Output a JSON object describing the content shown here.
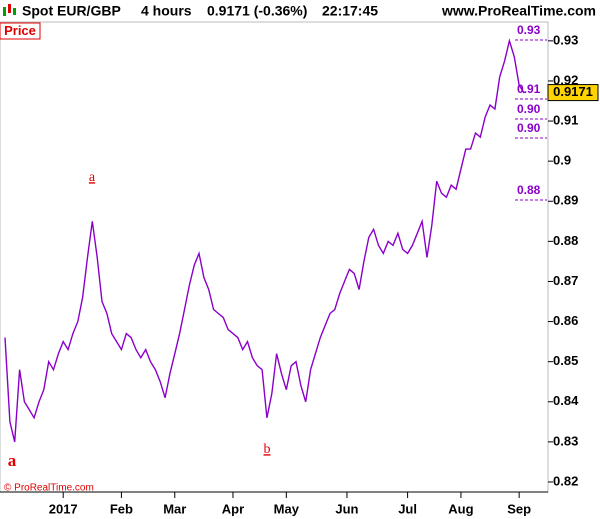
{
  "header": {
    "symbol": "Spot EUR/GBP",
    "timeframe": "4 hours",
    "quote": "0.9171 (-0.36%)",
    "time": "22:17:45",
    "site": "www.ProRealTime.com"
  },
  "panel_label": "Price",
  "copyright": "© ProRealTime.com",
  "chart_data": {
    "type": "line",
    "series": [
      {
        "name": "Spot EUR/GBP",
        "color": "#8a00c8",
        "values": [
          0.856,
          0.835,
          0.83,
          0.848,
          0.84,
          0.838,
          0.836,
          0.84,
          0.843,
          0.85,
          0.848,
          0.852,
          0.855,
          0.853,
          0.857,
          0.86,
          0.866,
          0.876,
          0.885,
          0.876,
          0.865,
          0.862,
          0.857,
          0.855,
          0.853,
          0.857,
          0.856,
          0.853,
          0.851,
          0.853,
          0.85,
          0.848,
          0.845,
          0.841,
          0.847,
          0.852,
          0.857,
          0.863,
          0.869,
          0.874,
          0.877,
          0.871,
          0.868,
          0.863,
          0.862,
          0.861,
          0.858,
          0.857,
          0.856,
          0.853,
          0.855,
          0.851,
          0.849,
          0.848,
          0.836,
          0.842,
          0.852,
          0.847,
          0.843,
          0.849,
          0.85,
          0.844,
          0.84,
          0.848,
          0.852,
          0.856,
          0.859,
          0.862,
          0.863,
          0.867,
          0.87,
          0.873,
          0.872,
          0.868,
          0.875,
          0.881,
          0.883,
          0.879,
          0.877,
          0.88,
          0.879,
          0.882,
          0.878,
          0.877,
          0.879,
          0.882,
          0.885,
          0.876,
          0.884,
          0.895,
          0.892,
          0.891,
          0.894,
          0.893,
          0.898,
          0.903,
          0.903,
          0.907,
          0.906,
          0.911,
          0.914,
          0.913,
          0.921,
          0.925,
          0.93,
          0.926,
          0.919,
          0.917
        ]
      }
    ],
    "xlim": [
      0,
      107
    ],
    "xticks": [
      {
        "value": 12,
        "label": "2017"
      },
      {
        "value": 24,
        "label": "Feb"
      },
      {
        "value": 35,
        "label": "Mar"
      },
      {
        "value": 47,
        "label": "Apr"
      },
      {
        "value": 58,
        "label": "May"
      },
      {
        "value": 70.5,
        "label": "Jun"
      },
      {
        "value": 83,
        "label": "Jul"
      },
      {
        "value": 94,
        "label": "Aug"
      },
      {
        "value": 106,
        "label": "Sep"
      }
    ],
    "ylim": [
      0.818,
      0.9347
    ],
    "yticks": [
      0.82,
      0.83,
      0.84,
      0.85,
      0.86,
      0.87,
      0.88,
      0.89,
      0.9,
      0.91,
      0.92,
      0.93
    ],
    "last_price": 0.9171,
    "levels": [
      "0.93",
      "0.91",
      "0.90",
      "0.90",
      "0.88"
    ],
    "annotations": [
      "a",
      "a",
      "b"
    ]
  }
}
